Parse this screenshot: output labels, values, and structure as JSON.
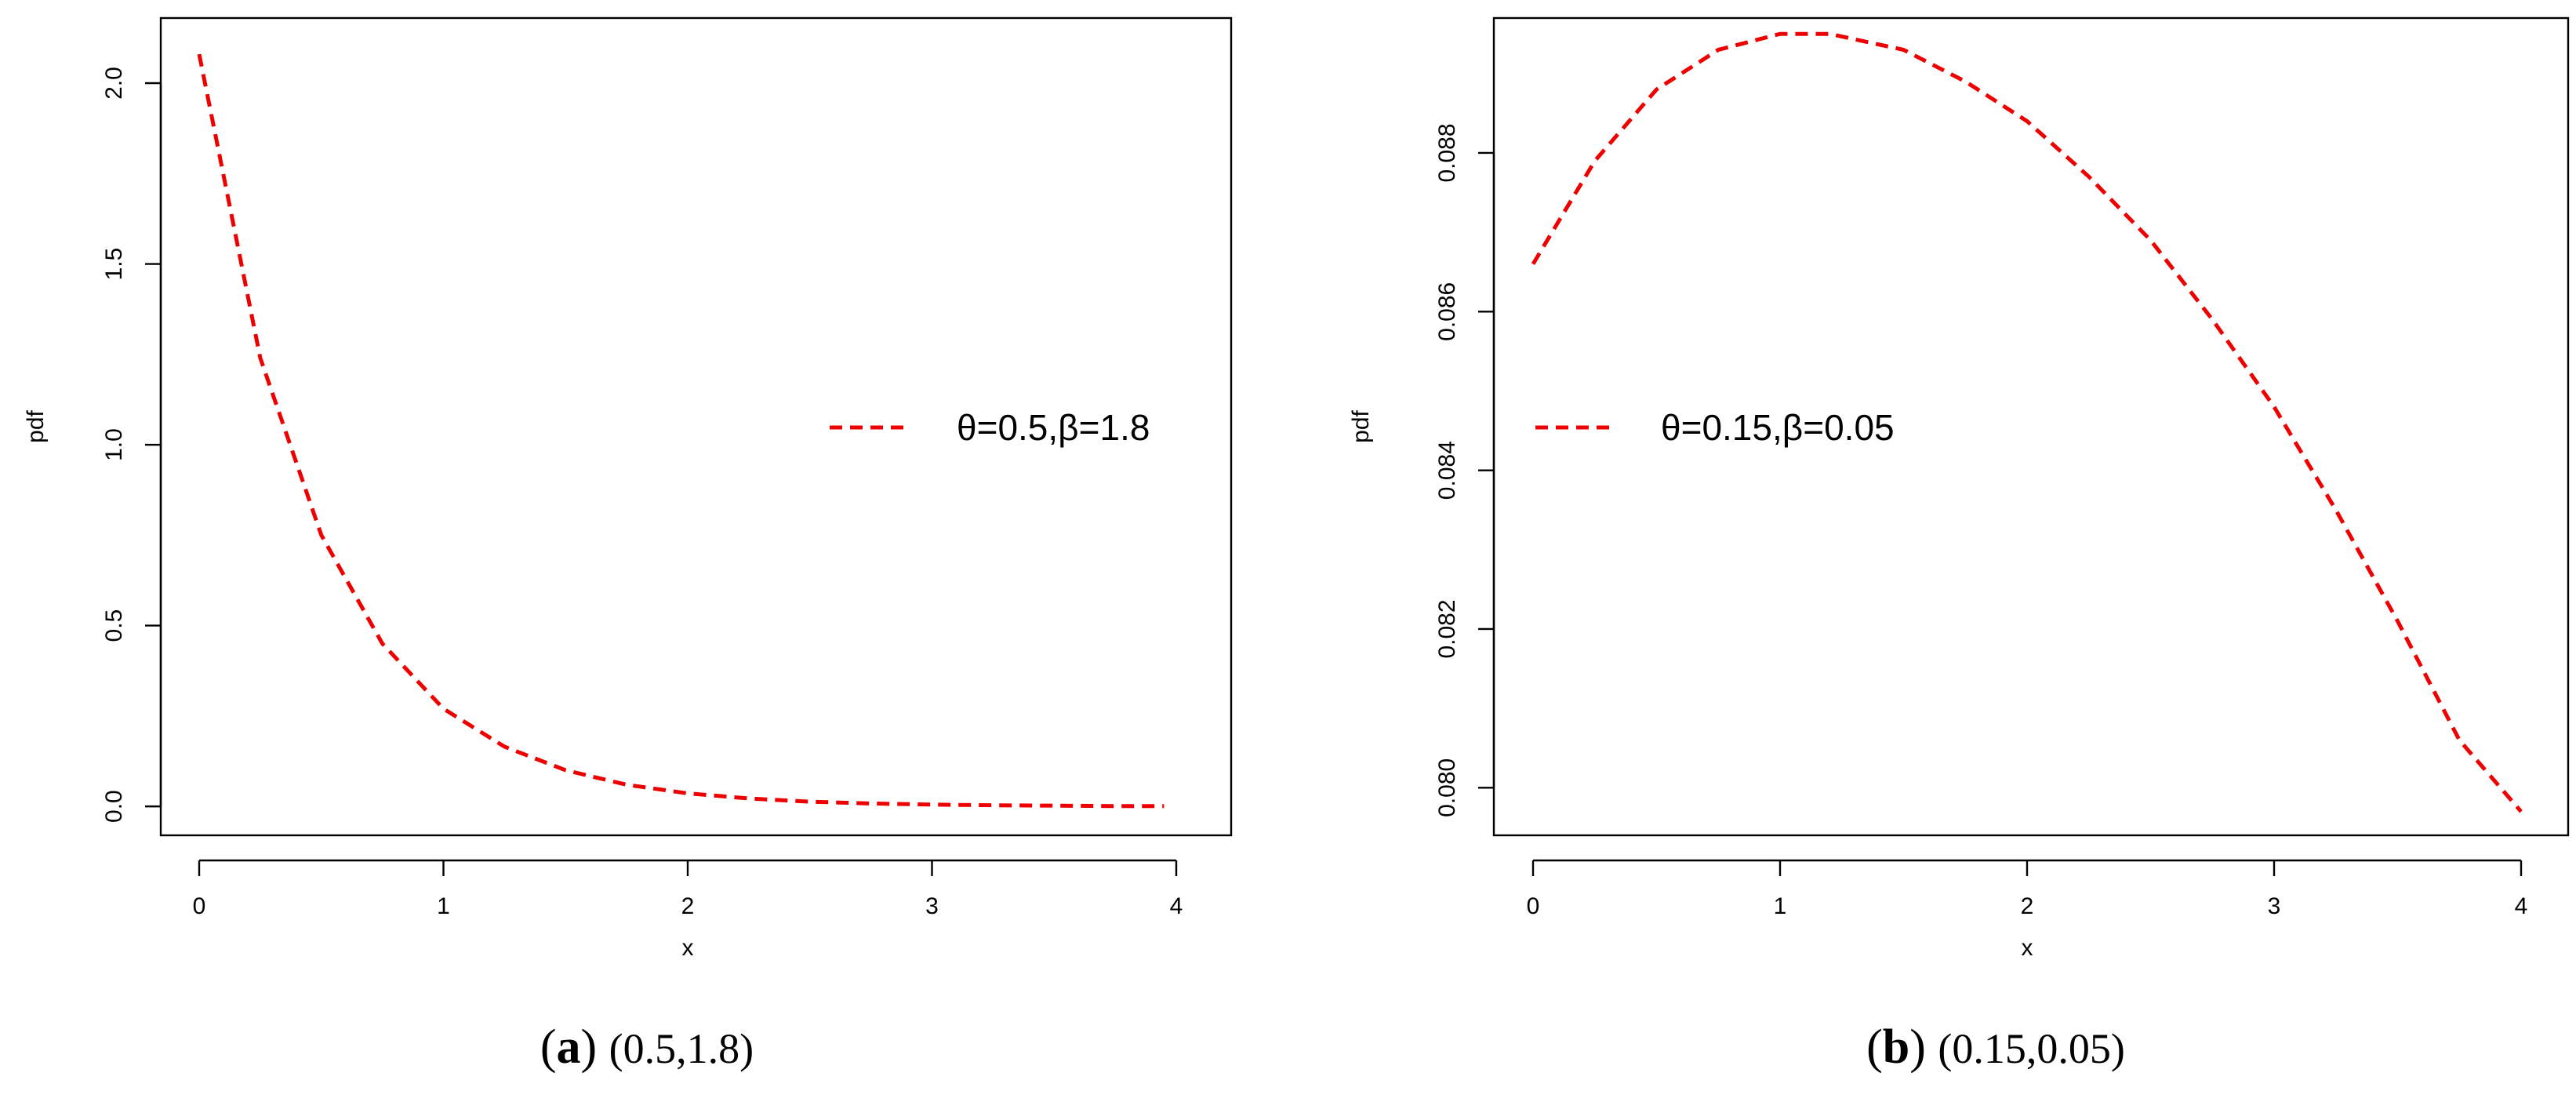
{
  "chart_data": [
    {
      "type": "line",
      "panel": "a",
      "title": "",
      "xlabel": "x",
      "ylabel": "pdf",
      "xlim": [
        0,
        4
      ],
      "ylim": [
        -0.08,
        2.18
      ],
      "xticks": [
        0,
        1,
        2,
        3,
        4
      ],
      "yticks": [
        0.0,
        0.5,
        1.0,
        1.5,
        2.0
      ],
      "xtick_labels": [
        "0",
        "1",
        "2",
        "3",
        "4"
      ],
      "ytick_labels": [
        "0.0",
        "0.5",
        "1.0",
        "1.5",
        "2.0"
      ],
      "legend_position": "right-middle",
      "caption_label": "a",
      "caption_value": "(0.5,1.8)",
      "series": [
        {
          "name": "θ=0.5,β=1.8",
          "color": "#ee0000",
          "style": "dashed",
          "x": [
            0,
            0.25,
            0.5,
            0.75,
            1,
            1.25,
            1.5,
            1.75,
            2,
            2.25,
            2.5,
            2.75,
            3,
            3.25,
            3.5,
            3.75,
            3.95
          ],
          "y": [
            2.08,
            1.24,
            0.75,
            0.45,
            0.27,
            0.165,
            0.1,
            0.06,
            0.036,
            0.022,
            0.013,
            0.008,
            0.005,
            0.003,
            0.002,
            0.001,
            0.001
          ]
        }
      ]
    },
    {
      "type": "line",
      "panel": "b",
      "title": "",
      "xlabel": "x",
      "ylabel": "pdf",
      "xlim": [
        0,
        4
      ],
      "ylim": [
        0.0794,
        0.0897
      ],
      "xticks": [
        0,
        1,
        2,
        3,
        4
      ],
      "yticks": [
        0.08,
        0.082,
        0.084,
        0.086,
        0.088
      ],
      "xtick_labels": [
        "0",
        "1",
        "2",
        "3",
        "4"
      ],
      "ytick_labels": [
        "0.080",
        "0.082",
        "0.084",
        "0.086",
        "0.088"
      ],
      "legend_position": "left-middle",
      "caption_label": "b",
      "caption_value": "(0.15,0.05)",
      "series": [
        {
          "name": "θ=0.15,β=0.05",
          "color": "#ee0000",
          "style": "dashed",
          "x": [
            0,
            0.25,
            0.5,
            0.75,
            1,
            1.2,
            1.5,
            1.75,
            2,
            2.25,
            2.5,
            2.75,
            3,
            3.25,
            3.5,
            3.75,
            4
          ],
          "y": [
            0.0866,
            0.0879,
            0.0888,
            0.0893,
            0.0895,
            0.0895,
            0.0893,
            0.0889,
            0.0884,
            0.0877,
            0.0869,
            0.0859,
            0.0848,
            0.0835,
            0.0821,
            0.0806,
            0.0797
          ]
        }
      ]
    }
  ]
}
